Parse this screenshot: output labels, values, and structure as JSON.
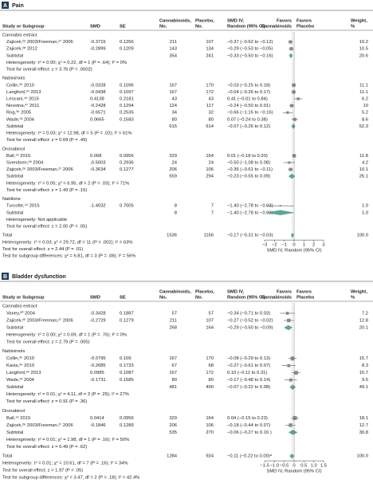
{
  "chart_data": [
    {
      "type": "forest",
      "letter": "A",
      "title": "Pain",
      "headers": {
        "study": [
          "Study or Subgroup"
        ],
        "smd": [
          "SMD"
        ],
        "se": [
          "SE"
        ],
        "cann": [
          "Cannabinoids,",
          "No."
        ],
        "plac": [
          "Placebo,",
          "No."
        ],
        "ci": [
          "SMD IV,",
          "Random (95% CI)"
        ],
        "favors_left": [
          "Favors",
          "Cannabinoids"
        ],
        "favors_right": [
          "Favors",
          "Placebo"
        ],
        "weight": [
          "Weight,",
          "%"
        ]
      },
      "xlim": [
        -3,
        3
      ],
      "xticks": [
        {
          "value": -3,
          "label": "−3"
        },
        {
          "value": -2,
          "label": "−2"
        },
        {
          "value": -1,
          "label": "−1"
        },
        0,
        1,
        2,
        3
      ],
      "xlabel": "SMD IV, Random (95% CI)",
      "groups": [
        {
          "name": "Cannabis extract",
          "studies": [
            {
              "label": "Zajicek,²⁶ 2003/Freeman,²⁷ 2006",
              "smd": -0.3715,
              "se": 0.1266,
              "n_cann": 211,
              "n_plac": 107,
              "est": -0.37,
              "lo": -0.62,
              "hi": -0.12,
              "ci": "−0.37 (−0.62 to −0.12)",
              "weight": 10.2
            },
            {
              "label": "Zajicek,²⁸ 2012",
              "smd": -0.2899,
              "se": 0.1209,
              "n_cann": 143,
              "n_plac": 134,
              "est": -0.29,
              "lo": -0.53,
              "hi": -0.05,
              "ci": "−0.29 (−0.53 to −0.05)",
              "weight": 10.5
            }
          ],
          "subtotal": {
            "label": "Subtotal",
            "n_cann": 354,
            "n_plac": 241,
            "est": -0.33,
            "lo": -0.5,
            "hi": -0.16,
            "ci": "−0.33 (−0.50 to −0.16)",
            "weight": 20.6
          },
          "heterogeneity": "Heterogeneity: τ² = 0.00; χ² = 0.22, df = 1 (P = .64); I² = 0%",
          "overall_effect": "Test for overall effect: z = 3.76 (P = .0002)"
        },
        {
          "name": "Nabiximols",
          "studies": [
            {
              "label": "Collin,³⁵ 2010",
              "smd": -0.0328,
              "se": 0.1096,
              "n_cann": 167,
              "n_plac": 170,
              "est": -0.03,
              "lo": -0.25,
              "hi": 0.18,
              "ci": "−0.03 (−0.25 to 0.18)",
              "weight": 11.1
            },
            {
              "label": "Langford,³⁹ 2013",
              "smd": -0.0438,
              "se": 0.1097,
              "n_cann": 167,
              "n_plac": 172,
              "est": -0.04,
              "lo": -0.26,
              "hi": 0.17,
              "ci": "−0.04 (−0.26 to 0.17)",
              "weight": 11.1
            },
            {
              "label": "Leocani,⁴³ 2015",
              "smd": 0.4138,
              "se": 0.2181,
              "n_cann": 43,
              "n_plac": 43,
              "est": 0.41,
              "lo": -0.01,
              "hi": 0.84,
              "ci": "0.41 (−0.01 to 0.84)",
              "weight": 6.2
            },
            {
              "label": "Novotna,³⁷ 2011",
              "smd": -0.2428,
              "se": 0.1294,
              "n_cann": 124,
              "n_plac": 117,
              "est": -0.24,
              "lo": -0.5,
              "hi": 0.01,
              "ci": "−0.24 (−0.50 to 0.01)",
              "weight": 10.0
            },
            {
              "label": "Rog,³⁶ 2005",
              "smd": -0.6571,
              "se": 0.2535,
              "n_cann": 34,
              "n_plac": 32,
              "est": -0.66,
              "lo": -1.15,
              "hi": -0.16,
              "ci": "−0.66 (−1.15 to −0.16)",
              "weight": 5.2
            },
            {
              "label": "Wade,³³ 2004",
              "smd": 0.0665,
              "se": 0.1583,
              "n_cann": 80,
              "n_plac": 80,
              "est": 0.07,
              "lo": -0.24,
              "hi": 0.38,
              "ci": "0.07 (−0.24 to 0.38)",
              "weight": 8.6
            }
          ],
          "subtotal": {
            "label": "Subtotal",
            "n_cann": 615,
            "n_plac": 614,
            "est": -0.07,
            "lo": -0.26,
            "hi": 0.12,
            "ci": "−0.07 (−0.26 to 0.12)",
            "weight": 52.3
          },
          "heterogeneity": "Heterogeneity: τ² = 0.03; χ² = 12.98, df = 5 (P = .02); I² = 61%",
          "overall_effect": "Test for overall effect: z = 0.69 (P = .49)"
        },
        {
          "name": "Dronabinol",
          "studies": [
            {
              "label": "Ball,⁴² 2015",
              "smd": 0.008,
              "se": 0.0956,
              "n_cann": 329,
              "n_plac": 164,
              "est": 0.01,
              "lo": -0.18,
              "hi": 0.2,
              "ci": "0.01 (−0.18 to 0.20)",
              "weight": 11.8
            },
            {
              "label": "Svendsen,²⁸ 2004",
              "smd": -0.5003,
              "se": 0.2936,
              "n_cann": 24,
              "n_plac": 24,
              "est": -0.5,
              "lo": -1.08,
              "hi": 0.08,
              "ci": "−0.50 (−1.08 to 0.08)",
              "weight": 4.2
            },
            {
              "label": "Zajicek,²⁶ 2003/Freeman,²⁷ 2006",
              "smd": -0.3634,
              "se": 0.1277,
              "n_cann": 206,
              "n_plac": 106,
              "est": -0.36,
              "lo": -0.61,
              "hi": -0.11,
              "ci": "−0.36 (−0.61 to −0.11)",
              "weight": 10.1
            }
          ],
          "subtotal": {
            "label": "Subtotal",
            "n_cann": 559,
            "n_plac": 294,
            "est": -0.23,
            "lo": -0.55,
            "hi": 0.09,
            "ci": "−0.23 (−0.55 to 0.09)",
            "weight": 26.1
          },
          "heterogeneity": "Heterogeneity: τ² = 0.05; χ² = 6.95, df = 2 (P = .03); I² = 71%",
          "overall_effect": "Test for overall effect: z = 1.43 (P = .15)"
        },
        {
          "name": "Nabilone",
          "studies": [
            {
              "label": "Turcotte,⁴¹ 2015",
              "smd": -1.4032,
              "se": 0.7005,
              "n_cann": 8,
              "n_plac": 7,
              "est": -1.4,
              "lo": -2.78,
              "hi": -0.03,
              "ci": "−1.40 (−2.78 to −0.03)",
              "weight": 1,
              "weight_label": "1.0"
            }
          ],
          "subtotal": {
            "label": "Subtotal",
            "n_cann": 8,
            "n_plac": 7,
            "est": -1.4,
            "lo": -2.78,
            "hi": -0.03,
            "ci": "−1.40 (−2.78 to −0.03)",
            "weight": 1,
            "weight_label": "1.0"
          },
          "heterogeneity": "Heterogeneity: Not applicable",
          "overall_effect": "Test for overall effect: z = 2.00 (P = .05)"
        }
      ],
      "total": {
        "label": "Total",
        "n_cann": 1536,
        "n_plac": 1156,
        "est": -0.17,
        "lo": -0.31,
        "hi": -0.03,
        "ci": "−0.17 (−0.31 to −0.03)",
        "weight": 100,
        "weight_label": "100.0"
      },
      "notes": [
        "Heterogeneity: τ² = 0.03; χ² = 29.72, df = 11 (P = .002); I² = 63%",
        "Test for overall effect: z = 2.44 (P = .01)",
        "Test for subgroup differences: χ² = 6.81, df = 3 (P = .08); I² = 56%"
      ]
    },
    {
      "type": "forest",
      "letter": "B",
      "title": "Bladder dysfunction",
      "headers": {
        "study": [
          "Study or Subgroup"
        ],
        "smd": [
          "SMD"
        ],
        "se": [
          "SE"
        ],
        "cann": [
          "Cannabinoids,",
          "No."
        ],
        "plac": [
          "Placebo,",
          "No."
        ],
        "ci": [
          "SMD IV,",
          "Random (95% CI)"
        ],
        "favors_left": [
          "Favors",
          "Cannabinoids"
        ],
        "favors_right": [
          "Favors",
          "Placebo"
        ],
        "weight": [
          "Weight,",
          "%"
        ]
      },
      "xlim": [
        -1.5,
        1.5
      ],
      "xticks": [
        {
          "value": -1.5,
          "label": "−1.5"
        },
        {
          "value": -1,
          "label": "−1.0"
        },
        {
          "value": -0.5,
          "label": "−0.5"
        },
        0,
        0.5,
        {
          "value": 1,
          "label": "1.0"
        },
        1.5
      ],
      "xlabel": "SMD IV, Random (95% CI)",
      "groups": [
        {
          "name": "Cannabis extract",
          "studies": [
            {
              "label": "Vaney,³⁰ 2004",
              "smd": -0.3428,
              "se": 0.1887,
              "n_cann": 57,
              "n_plac": 57,
              "est": -0.34,
              "lo": -0.71,
              "hi": 0.03,
              "ci": "−0.34 (−0.71 to 0.03)",
              "weight": 7.2
            },
            {
              "label": "Zajicek,²⁶ 2003/Freeman,²⁷ 2006",
              "smd": -0.2729,
              "se": 0.1279,
              "n_cann": 211,
              "n_plac": 107,
              "est": -0.27,
              "lo": -0.52,
              "hi": -0.02,
              "ci": "−0.27 (−0.52 to −0.02)",
              "weight": 12.8
            }
          ],
          "subtotal": {
            "label": "Subtotal",
            "n_cann": 268,
            "n_plac": 164,
            "est": -0.29,
            "lo": -0.5,
            "hi": -0.09,
            "ci": "−0.29 (−0.50 to −0.09)",
            "weight": 20.1
          },
          "heterogeneity": "Heterogeneity: τ² = 0.00; χ² = 0.09, df = 1 (P = .76); I² = 0%",
          "overall_effect": "Test for overall effect: z = 2.79 (P = .005)"
        },
        {
          "name": "Nabiximols",
          "studies": [
            {
              "label": "Collin,³⁵ 2010",
              "smd": -0.0795,
              "se": 0.109,
              "n_cann": 167,
              "n_plac": 170,
              "est": -0.08,
              "lo": -0.29,
              "hi": 0.13,
              "ci": "−0.08 (−0.29 to 0.13)",
              "weight": 15.7
            },
            {
              "label": "Kavia,³⁴ 2010",
              "smd": -0.2685,
              "se": 0.1733,
              "n_cann": 67,
              "n_plac": 68,
              "est": -0.27,
              "lo": -0.61,
              "hi": 0.07,
              "ci": "−0.27 (−0.61 to 0.07)",
              "weight": 8.3
            },
            {
              "label": "Langford,³⁹ 2013",
              "smd": 0.0985,
              "se": 0.1087,
              "n_cann": 167,
              "n_plac": 172,
              "est": 0.1,
              "lo": -0.11,
              "hi": 0.31,
              "ci": "0.10 (−0.11 to 0.31)",
              "weight": 15.7
            },
            {
              "label": "Wade,³³ 2004",
              "smd": -0.1731,
              "se": 0.1585,
              "n_cann": 80,
              "n_plac": 80,
              "est": -0.17,
              "lo": -0.48,
              "hi": 0.14,
              "ci": "−0.17 (−0.48 to 0.14)",
              "weight": 9.5
            }
          ],
          "subtotal": {
            "label": "Subtotal",
            "n_cann": 481,
            "n_plac": 490,
            "est": -0.07,
            "lo": -0.22,
            "hi": 0.08,
            "ci": "−0.07 (−0.22 to 0.08)",
            "weight": 49.1
          },
          "heterogeneity": "Heterogeneity: τ² = 0.01; χ² = 4.11, df = 3 (P = .25); I² = 27%",
          "overall_effect": "Test for overall effect: z = 0.91 (P = .36)"
        },
        {
          "name": "Dronabinol",
          "studies": [
            {
              "label": "Ball,⁴² 2015",
              "smd": 0.0414,
              "se": 0.0956,
              "n_cann": 329,
              "n_plac": 164,
              "est": 0.04,
              "lo": -0.15,
              "hi": 0.23,
              "ci": "0.04 (−0.15 to 0.23)",
              "weight": 18.1
            },
            {
              "label": "Zajicek,²⁶ 2003/Freeman,²⁷ 2006",
              "smd": -0.1846,
              "se": 0.1289,
              "n_cann": 206,
              "n_plac": 106,
              "est": -0.18,
              "lo": -0.44,
              "hi": 0.07,
              "ci": "−0.18 (−0.44 to 0.07)",
              "weight": 12.7
            }
          ],
          "subtotal": {
            "label": "Subtotal",
            "n_cann": 535,
            "n_plac": 270,
            "est": -0.06,
            "lo": -0.27,
            "hi": 0.16,
            "ci": "−0.06 (−0.27 to 0.16 )",
            "weight": 30.8
          },
          "heterogeneity": "Heterogeneity: τ² = 0.01; χ² = 1.98, df = 1 (P = .16); I² = 50%",
          "overall_effect": "Test for overall effect: z = 0.49 (P = .62)"
        }
      ],
      "total": {
        "label": "Total",
        "n_cann": 1284,
        "n_plac": 924,
        "est": -0.11,
        "lo": -0.22,
        "hi": 0.0,
        "ci": "−0.11 (−0.22 to 0.00)ᵃ",
        "weight": 100,
        "weight_label": "100.0"
      },
      "notes": [
        "Heterogeneity: τ² = 0.01; χ² = 10.61, df = 7 (P = .16); I² = 34%",
        "Test for overall effect: z = 1.97 (P = .05)",
        "Test for subgroup differences: χ² = 3.47, df = 2 (P = .18); I² = 42.4%"
      ]
    }
  ]
}
